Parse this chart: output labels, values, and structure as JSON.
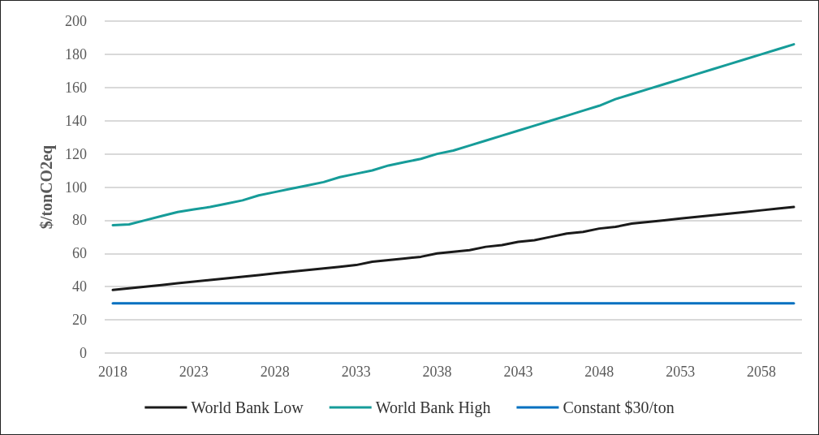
{
  "chart_data": {
    "type": "line",
    "ylabel": "$/tonCO2eq",
    "categories": [
      "2018",
      null,
      null,
      null,
      null,
      "2023",
      null,
      null,
      null,
      null,
      "2028",
      null,
      null,
      null,
      null,
      "2033",
      null,
      null,
      null,
      null,
      "2038",
      null,
      null,
      null,
      null,
      "2043",
      null,
      null,
      null,
      null,
      "2048",
      null,
      null,
      null,
      null,
      "2053",
      null,
      null,
      null,
      null,
      "2058",
      null,
      null
    ],
    "series": [
      {
        "name": "World Bank Low",
        "color": "#1a1a1a",
        "values": [
          38,
          39,
          40,
          41,
          42,
          43,
          44,
          45,
          46,
          47,
          48,
          49,
          50,
          51,
          52,
          53,
          55,
          56,
          57,
          58,
          60,
          61,
          62,
          64,
          65,
          67,
          68,
          70,
          72,
          73,
          75,
          76,
          78,
          79,
          80,
          81,
          82,
          83,
          84,
          85,
          86,
          87,
          88
        ]
      },
      {
        "name": "World Bank High",
        "color": "#169c99",
        "values": [
          77,
          77.5,
          80,
          82.5,
          85,
          86.5,
          88,
          90,
          92,
          95,
          97,
          99,
          101,
          103,
          106,
          108,
          110,
          113,
          115,
          117,
          120,
          122,
          125,
          128,
          131,
          134,
          137,
          140,
          143,
          146,
          149,
          153,
          156,
          159,
          162,
          165,
          168,
          171,
          174,
          177,
          180,
          183,
          186
        ]
      },
      {
        "name": "Constant $30/ton",
        "color": "#0070c0",
        "values": [
          30,
          30,
          30,
          30,
          30,
          30,
          30,
          30,
          30,
          30,
          30,
          30,
          30,
          30,
          30,
          30,
          30,
          30,
          30,
          30,
          30,
          30,
          30,
          30,
          30,
          30,
          30,
          30,
          30,
          30,
          30,
          30,
          30,
          30,
          30,
          30,
          30,
          30,
          30,
          30,
          30,
          30,
          30
        ]
      }
    ],
    "ylim": [
      0,
      200
    ],
    "yticks": [
      0,
      20,
      40,
      60,
      80,
      100,
      120,
      140,
      160,
      180,
      200
    ],
    "grid": "y",
    "legend": "bottom",
    "marker": "none",
    "line_style": "solid"
  }
}
